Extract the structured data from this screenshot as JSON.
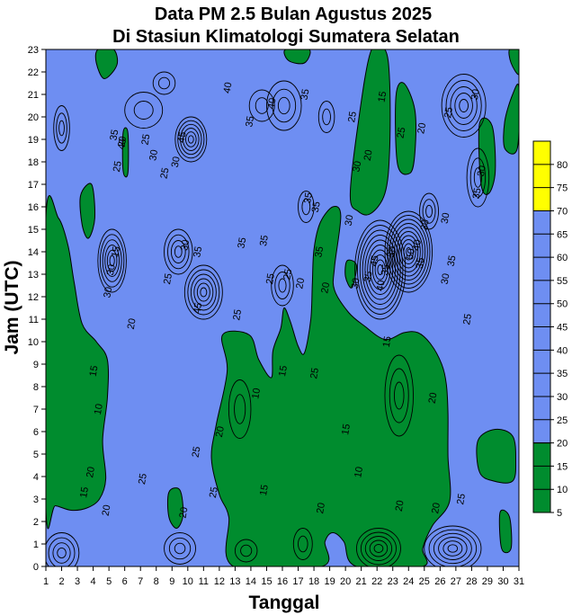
{
  "chart_data": {
    "type": "heatmap",
    "title_line1": "Data PM 2.5 Bulan Agustus 2025",
    "title_line2": "Di Stasiun Klimatologi Sumatera Selatan",
    "xlabel": "Tanggal",
    "ylabel": "Jam (UTC)",
    "x_ticks": [
      1,
      2,
      3,
      4,
      5,
      6,
      7,
      8,
      9,
      10,
      11,
      12,
      13,
      14,
      15,
      16,
      17,
      18,
      19,
      20,
      21,
      22,
      23,
      24,
      25,
      26,
      27,
      28,
      29,
      30,
      31
    ],
    "y_ticks": [
      0,
      1,
      2,
      3,
      4,
      5,
      6,
      7,
      8,
      9,
      10,
      11,
      12,
      13,
      14,
      15,
      16,
      17,
      18,
      19,
      20,
      21,
      22,
      23
    ],
    "xlim": [
      1,
      31
    ],
    "ylim": [
      0,
      23
    ],
    "colorbar": {
      "levels": [
        5,
        10,
        15,
        20,
        25,
        30,
        35,
        40,
        45,
        50,
        55,
        60,
        65,
        70,
        75,
        80
      ],
      "bands": [
        {
          "from": 5,
          "to": 20,
          "color": "#008c2e"
        },
        {
          "from": 20,
          "to": 70,
          "color": "#6e8ef2"
        },
        {
          "from": 70,
          "to": 85,
          "color": "#ffff00"
        }
      ]
    },
    "green_regions": [
      [
        [
          1,
          15.5
        ],
        [
          1.8,
          15.5
        ],
        [
          2.4,
          14.3
        ],
        [
          2.8,
          12.6
        ],
        [
          3.3,
          10.8
        ],
        [
          4.2,
          10
        ],
        [
          4.9,
          9.2
        ],
        [
          4.9,
          7.5
        ],
        [
          4.6,
          5.6
        ],
        [
          4.8,
          3.9
        ],
        [
          4.4,
          3
        ],
        [
          3.6,
          2.6
        ],
        [
          2.6,
          2.5
        ],
        [
          1.6,
          2.7
        ],
        [
          1,
          2.6
        ]
      ],
      [
        [
          3.2,
          16.5
        ],
        [
          3.9,
          17
        ],
        [
          4.1,
          15.5
        ],
        [
          3.7,
          14.6
        ],
        [
          3.3,
          15.2
        ]
      ],
      [
        [
          5.9,
          17.6
        ],
        [
          6.2,
          17.5
        ],
        [
          6.2,
          19.3
        ],
        [
          5.9,
          19.3
        ]
      ],
      [
        [
          4.3,
          23
        ],
        [
          5.3,
          23
        ],
        [
          5.5,
          22.3
        ],
        [
          4.7,
          21.7
        ],
        [
          4.2,
          22.4
        ]
      ],
      [
        [
          12.9,
          0
        ],
        [
          12.6,
          2.2
        ],
        [
          12,
          3.2
        ],
        [
          11.5,
          4.8
        ],
        [
          11.8,
          6.3
        ],
        [
          12.5,
          8.7
        ],
        [
          12.2,
          10.3
        ],
        [
          13.9,
          10.3
        ],
        [
          14.5,
          9.2
        ],
        [
          15.3,
          8.4
        ],
        [
          15.4,
          9.6
        ],
        [
          15.9,
          10.6
        ],
        [
          16.1,
          11.5
        ],
        [
          16.5,
          10.9
        ],
        [
          17,
          9.8
        ],
        [
          17.4,
          9.5
        ],
        [
          17.8,
          11
        ],
        [
          17.9,
          12.6
        ],
        [
          18,
          14.1
        ],
        [
          18.4,
          15.3
        ],
        [
          19.2,
          16
        ],
        [
          19.7,
          15.6
        ],
        [
          19.3,
          13.3
        ],
        [
          19.3,
          12.3
        ],
        [
          20.2,
          11.3
        ],
        [
          21.2,
          10.7
        ],
        [
          22.5,
          10.1
        ],
        [
          23.7,
          10.4
        ],
        [
          24.6,
          10.4
        ],
        [
          25.4,
          9.9
        ],
        [
          26.1,
          9
        ],
        [
          26.4,
          8.1
        ],
        [
          26.5,
          6.8
        ],
        [
          26.5,
          4.9
        ],
        [
          26.6,
          2.9
        ],
        [
          25.5,
          1.8
        ],
        [
          24.9,
          0.8
        ],
        [
          24.9,
          0
        ],
        [
          20.7,
          0
        ],
        [
          19.9,
          1.1
        ],
        [
          19.2,
          1.5
        ],
        [
          18.7,
          1.1
        ],
        [
          18.5,
          0
        ]
      ],
      [
        [
          8.8,
          3.3
        ],
        [
          9.5,
          3.4
        ],
        [
          9.7,
          2.3
        ],
        [
          9.3,
          1.7
        ],
        [
          8.8,
          2.2
        ]
      ],
      [
        [
          20.3,
          16.5
        ],
        [
          20.8,
          19.7
        ],
        [
          21.6,
          22.9
        ],
        [
          22.5,
          23
        ],
        [
          22.8,
          21.6
        ],
        [
          22.8,
          18.5
        ],
        [
          22.5,
          16.6
        ],
        [
          21.6,
          15.7
        ],
        [
          20.8,
          15.8
        ]
      ],
      [
        [
          23.2,
          20.9
        ],
        [
          23.7,
          21.5
        ],
        [
          24.4,
          20.3
        ],
        [
          24.4,
          18.4
        ],
        [
          24.1,
          17.5
        ],
        [
          23.3,
          17.9
        ]
      ],
      [
        [
          28.5,
          19.7
        ],
        [
          29.3,
          19.6
        ],
        [
          29.5,
          17.6
        ],
        [
          29.1,
          16.6
        ],
        [
          28.6,
          17
        ]
      ],
      [
        [
          30.1,
          18.6
        ],
        [
          30.9,
          18.6
        ],
        [
          31,
          21.3
        ],
        [
          30.6,
          21
        ],
        [
          30.1,
          19.8
        ]
      ],
      [
        [
          30.4,
          23
        ],
        [
          31,
          23
        ],
        [
          31,
          21.9
        ],
        [
          30.5,
          22.4
        ]
      ],
      [
        [
          16.2,
          23
        ],
        [
          17.7,
          23
        ],
        [
          17.4,
          22.4
        ],
        [
          16.4,
          22.5
        ]
      ],
      [
        [
          29.9,
          0.8
        ],
        [
          30.5,
          0.8
        ],
        [
          30.4,
          2.2
        ],
        [
          29.8,
          2.4
        ]
      ],
      [
        [
          28.4,
          5.6
        ],
        [
          29.5,
          6.1
        ],
        [
          30.6,
          5.8
        ],
        [
          30.8,
          4.7
        ],
        [
          30.6,
          3.8
        ],
        [
          29.4,
          3.8
        ],
        [
          28.5,
          4.2
        ]
      ],
      [
        [
          20.1,
          13.6
        ],
        [
          20.7,
          13.4
        ],
        [
          20.4,
          12.4
        ],
        [
          20,
          12.9
        ]
      ]
    ],
    "contour_loops": [
      {
        "cx": 26.8,
        "cy": 0.8,
        "rx": 1.8,
        "ry": 1.0,
        "n": 6
      },
      {
        "cx": 2.0,
        "cy": 0.6,
        "rx": 1.1,
        "ry": 0.9,
        "n": 4
      },
      {
        "cx": 22.1,
        "cy": 0.8,
        "rx": 1.4,
        "ry": 0.9,
        "n": 5
      },
      {
        "cx": 9.5,
        "cy": 0.8,
        "rx": 1.0,
        "ry": 0.7,
        "n": 3
      },
      {
        "cx": 13.7,
        "cy": 0.7,
        "rx": 0.7,
        "ry": 0.5,
        "n": 2
      },
      {
        "cx": 17.3,
        "cy": 1.0,
        "rx": 0.6,
        "ry": 0.7,
        "n": 2
      },
      {
        "cx": 22.2,
        "cy": 13.2,
        "rx": 1.6,
        "ry": 2.2,
        "n": 10
      },
      {
        "cx": 24.0,
        "cy": 14.0,
        "rx": 1.5,
        "ry": 1.8,
        "n": 10
      },
      {
        "cx": 5.2,
        "cy": 13.6,
        "rx": 0.9,
        "ry": 1.4,
        "n": 6
      },
      {
        "cx": 11.0,
        "cy": 12.2,
        "rx": 1.2,
        "ry": 1.2,
        "n": 6
      },
      {
        "cx": 10.2,
        "cy": 19.0,
        "rx": 1.0,
        "ry": 1.0,
        "n": 6
      },
      {
        "cx": 9.4,
        "cy": 14.0,
        "rx": 0.9,
        "ry": 1.0,
        "n": 4
      },
      {
        "cx": 27.5,
        "cy": 20.5,
        "rx": 1.4,
        "ry": 1.4,
        "n": 5
      },
      {
        "cx": 16.1,
        "cy": 20.5,
        "rx": 1.1,
        "ry": 1.1,
        "n": 3
      },
      {
        "cx": 23.4,
        "cy": 7.6,
        "rx": 0.9,
        "ry": 1.8,
        "n": 3
      },
      {
        "cx": 8.5,
        "cy": 21.5,
        "rx": 0.7,
        "ry": 0.5,
        "n": 2
      },
      {
        "cx": 2.0,
        "cy": 19.5,
        "rx": 0.5,
        "ry": 1.0,
        "n": 3
      },
      {
        "cx": 16.0,
        "cy": 12.5,
        "rx": 0.7,
        "ry": 0.9,
        "n": 3
      },
      {
        "cx": 17.5,
        "cy": 16.0,
        "rx": 0.5,
        "ry": 0.7,
        "n": 2
      },
      {
        "cx": 25.3,
        "cy": 15.8,
        "rx": 0.6,
        "ry": 0.8,
        "n": 3
      },
      {
        "cx": 28.4,
        "cy": 17.3,
        "rx": 0.7,
        "ry": 1.3,
        "n": 3
      },
      {
        "cx": 7.2,
        "cy": 20.3,
        "rx": 1.2,
        "ry": 0.8,
        "n": 2
      },
      {
        "cx": 14.7,
        "cy": 20.5,
        "rx": 0.8,
        "ry": 0.7,
        "n": 2
      },
      {
        "cx": 13.3,
        "cy": 7.0,
        "rx": 0.7,
        "ry": 1.3,
        "n": 2
      },
      {
        "cx": 18.8,
        "cy": 20.0,
        "rx": 0.5,
        "ry": 0.7,
        "n": 2
      }
    ],
    "contour_labels": [
      {
        "x": 4.3,
        "y": 7.0,
        "t": "10"
      },
      {
        "x": 4.0,
        "y": 8.7,
        "t": "15"
      },
      {
        "x": 3.4,
        "y": 3.3,
        "t": "15"
      },
      {
        "x": 3.8,
        "y": 4.2,
        "t": "20"
      },
      {
        "x": 4.8,
        "y": 2.5,
        "t": "20"
      },
      {
        "x": 5.4,
        "y": 14.0,
        "t": "15"
      },
      {
        "x": 4.9,
        "y": 12.2,
        "t": "30"
      },
      {
        "x": 5.1,
        "y": 13.2,
        "t": "30"
      },
      {
        "x": 6.4,
        "y": 10.8,
        "t": "20"
      },
      {
        "x": 5.8,
        "y": 18.9,
        "t": "20"
      },
      {
        "x": 7.3,
        "y": 19.0,
        "t": "25"
      },
      {
        "x": 7.8,
        "y": 18.3,
        "t": "30"
      },
      {
        "x": 5.3,
        "y": 19.2,
        "t": "35"
      },
      {
        "x": 5.8,
        "y": 18.8,
        "t": "40"
      },
      {
        "x": 5.5,
        "y": 17.8,
        "t": "25"
      },
      {
        "x": 8.5,
        "y": 17.5,
        "t": "25"
      },
      {
        "x": 9.2,
        "y": 18.0,
        "t": "30"
      },
      {
        "x": 9.6,
        "y": 19.1,
        "t": "45"
      },
      {
        "x": 9.8,
        "y": 14.3,
        "t": "30"
      },
      {
        "x": 10.6,
        "y": 14.0,
        "t": "35"
      },
      {
        "x": 10.6,
        "y": 11.5,
        "t": "45"
      },
      {
        "x": 8.7,
        "y": 12.8,
        "t": "25"
      },
      {
        "x": 7.1,
        "y": 3.9,
        "t": "25"
      },
      {
        "x": 9.7,
        "y": 2.4,
        "t": "20"
      },
      {
        "x": 11.6,
        "y": 3.3,
        "t": "25"
      },
      {
        "x": 10.5,
        "y": 5.1,
        "t": "25"
      },
      {
        "x": 12.0,
        "y": 6.0,
        "t": "20"
      },
      {
        "x": 12.5,
        "y": 21.3,
        "t": "40"
      },
      {
        "x": 13.9,
        "y": 19.8,
        "t": "35"
      },
      {
        "x": 15.3,
        "y": 20.6,
        "t": "40"
      },
      {
        "x": 13.4,
        "y": 14.4,
        "t": "35"
      },
      {
        "x": 13.1,
        "y": 11.2,
        "t": "25"
      },
      {
        "x": 14.8,
        "y": 14.5,
        "t": "35"
      },
      {
        "x": 15.2,
        "y": 12.8,
        "t": "25"
      },
      {
        "x": 16.3,
        "y": 13.0,
        "t": "25"
      },
      {
        "x": 17.1,
        "y": 12.6,
        "t": "20"
      },
      {
        "x": 17.4,
        "y": 21.0,
        "t": "35"
      },
      {
        "x": 17.6,
        "y": 16.4,
        "t": "35"
      },
      {
        "x": 18.1,
        "y": 16.0,
        "t": "35"
      },
      {
        "x": 18.3,
        "y": 14.0,
        "t": "35"
      },
      {
        "x": 18.7,
        "y": 12.4,
        "t": "20"
      },
      {
        "x": 20.4,
        "y": 20.0,
        "t": "25"
      },
      {
        "x": 20.7,
        "y": 17.8,
        "t": "30"
      },
      {
        "x": 20.2,
        "y": 15.4,
        "t": "30"
      },
      {
        "x": 21.4,
        "y": 18.3,
        "t": "20"
      },
      {
        "x": 22.3,
        "y": 20.9,
        "t": "15"
      },
      {
        "x": 22.9,
        "y": 14.0,
        "t": "30"
      },
      {
        "x": 22.5,
        "y": 13.2,
        "t": "35"
      },
      {
        "x": 22.2,
        "y": 12.5,
        "t": "40"
      },
      {
        "x": 23.5,
        "y": 19.3,
        "t": "25"
      },
      {
        "x": 24.8,
        "y": 19.5,
        "t": "20"
      },
      {
        "x": 24.5,
        "y": 14.3,
        "t": "40"
      },
      {
        "x": 25.0,
        "y": 15.2,
        "t": "30"
      },
      {
        "x": 26.5,
        "y": 20.2,
        "t": "25"
      },
      {
        "x": 28.2,
        "y": 21.0,
        "t": "30"
      },
      {
        "x": 28.6,
        "y": 17.6,
        "t": "30"
      },
      {
        "x": 28.3,
        "y": 16.6,
        "t": "35"
      },
      {
        "x": 26.7,
        "y": 13.6,
        "t": "35"
      },
      {
        "x": 26.3,
        "y": 12.8,
        "t": "30"
      },
      {
        "x": 27.7,
        "y": 11.0,
        "t": "25"
      },
      {
        "x": 26.3,
        "y": 15.5,
        "t": "30"
      },
      {
        "x": 16.0,
        "y": 8.7,
        "t": "15"
      },
      {
        "x": 14.3,
        "y": 7.7,
        "t": "10"
      },
      {
        "x": 14.8,
        "y": 3.4,
        "t": "15"
      },
      {
        "x": 18.4,
        "y": 2.6,
        "t": "20"
      },
      {
        "x": 18.0,
        "y": 8.6,
        "t": "25"
      },
      {
        "x": 20.8,
        "y": 4.2,
        "t": "10"
      },
      {
        "x": 22.6,
        "y": 10.0,
        "t": "15"
      },
      {
        "x": 23.4,
        "y": 2.7,
        "t": "20"
      },
      {
        "x": 25.7,
        "y": 2.6,
        "t": "20"
      },
      {
        "x": 27.3,
        "y": 3.0,
        "t": "25"
      },
      {
        "x": 20.0,
        "y": 6.1,
        "t": "15"
      },
      {
        "x": 25.5,
        "y": 7.5,
        "t": "20"
      },
      {
        "x": 20.6,
        "y": 12.6,
        "t": "30"
      },
      {
        "x": 21.4,
        "y": 12.9,
        "t": "35"
      },
      {
        "x": 21.8,
        "y": 13.6,
        "t": "45"
      },
      {
        "x": 24.1,
        "y": 13.9,
        "t": "50"
      },
      {
        "x": 24.7,
        "y": 13.5,
        "t": "35"
      }
    ]
  }
}
